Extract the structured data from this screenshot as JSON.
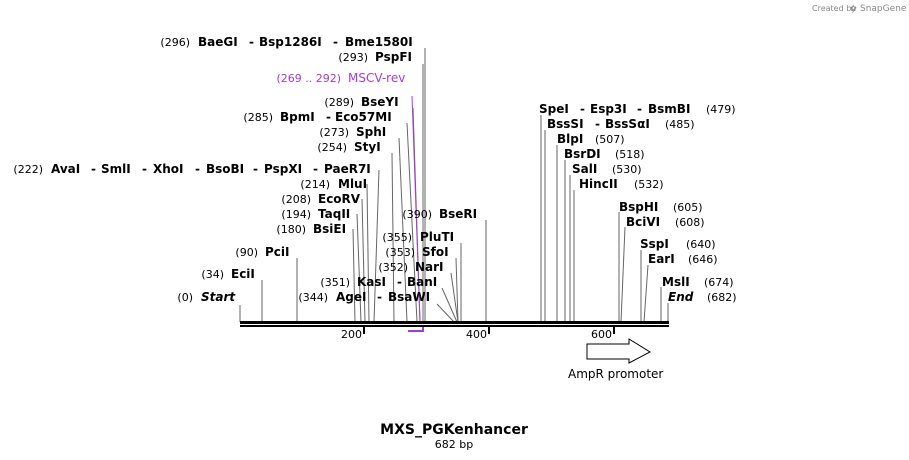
{
  "credit": "Created by",
  "brand": "SnapGene",
  "map": {
    "title": "MXS_PGKenhancer",
    "length_label": "682 bp",
    "ticks": [
      "200",
      "400",
      "600"
    ],
    "labels": [
      {
        "pos": "(296)",
        "names": [
          "BaeGI",
          "Bsp1286I",
          "Bme1580I"
        ]
      },
      {
        "pos": "(293)",
        "names": [
          "PspFI"
        ]
      },
      {
        "pos": "(289)",
        "names": [
          "BseYI"
        ]
      },
      {
        "pos": "(285)",
        "names": [
          "BpmI",
          "Eco57MI"
        ]
      },
      {
        "pos": "(273)",
        "names": [
          "SphI"
        ]
      },
      {
        "pos": "(254)",
        "names": [
          "StyI"
        ]
      },
      {
        "pos": "(222)",
        "names": [
          "AvaI",
          "SmlI",
          "XhoI",
          "BsoBI",
          "PspXI",
          "PaeR7I"
        ]
      },
      {
        "pos": "(214)",
        "names": [
          "MluI"
        ]
      },
      {
        "pos": "(208)",
        "names": [
          "EcoRV"
        ]
      },
      {
        "pos": "(194)",
        "names": [
          "TaqII"
        ]
      },
      {
        "pos": "(180)",
        "names": [
          "BsiEI"
        ]
      },
      {
        "pos": "(90)",
        "names": [
          "PciI"
        ]
      },
      {
        "pos": "(34)",
        "names": [
          "EciI"
        ]
      },
      {
        "pos": "(0)",
        "names": [
          "Start"
        ]
      },
      {
        "pos": "(390)",
        "names": [
          "BseRI"
        ]
      },
      {
        "pos": "(355)",
        "names": [
          "PluTI"
        ]
      },
      {
        "pos": "(353)",
        "names": [
          "SfoI"
        ]
      },
      {
        "pos": "(352)",
        "names": [
          "NarI"
        ]
      },
      {
        "pos": "(351)",
        "names": [
          "KasI",
          "BanI"
        ]
      },
      {
        "pos": "(344)",
        "names": [
          "AgeI",
          "BsaWI"
        ]
      },
      {
        "pos": "(479)",
        "names": [
          "SpeI",
          "Esp3I",
          "BsmBI"
        ]
      },
      {
        "pos": "(485)",
        "names": [
          "BssSI",
          "BssSαI"
        ]
      },
      {
        "pos": "(507)",
        "names": [
          "BlpI"
        ]
      },
      {
        "pos": "(518)",
        "names": [
          "BsrDI"
        ]
      },
      {
        "pos": "(530)",
        "names": [
          "SalI"
        ]
      },
      {
        "pos": "(532)",
        "names": [
          "HincII"
        ]
      },
      {
        "pos": "(605)",
        "names": [
          "BspHI"
        ]
      },
      {
        "pos": "(608)",
        "names": [
          "BciVI"
        ]
      },
      {
        "pos": "(640)",
        "names": [
          "SspI"
        ]
      },
      {
        "pos": "(646)",
        "names": [
          "EarI"
        ]
      },
      {
        "pos": "(674)",
        "names": [
          "MslI"
        ]
      },
      {
        "pos": "(682)",
        "names": [
          "End"
        ]
      }
    ],
    "primer": {
      "range": "(269 .. 292)",
      "name": "MSCV-rev",
      "color": "#a23cd6"
    },
    "feature": {
      "name": "AmpR promoter"
    }
  }
}
